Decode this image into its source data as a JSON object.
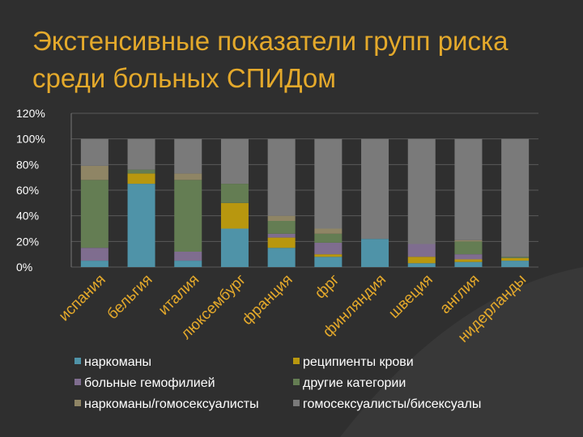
{
  "title": "Экстенсивные показатели групп риска среди больных СПИДом",
  "chart_data": {
    "type": "bar",
    "stacked": true,
    "categories": [
      "испания",
      "бельгия",
      "италия",
      "люксембург",
      "франция",
      "фрг",
      "финляндия",
      "швеция",
      "англия",
      "нидерланды"
    ],
    "y_ticks": [
      "0%",
      "20%",
      "40%",
      "60%",
      "80%",
      "100%",
      "120%"
    ],
    "ylim": [
      0,
      120
    ],
    "legend_position": "bottom",
    "series": [
      {
        "name": "наркоманы",
        "color": "#4f93a8",
        "values": [
          5,
          65,
          5,
          30,
          15,
          8,
          22,
          3,
          4,
          5
        ]
      },
      {
        "name": "реципиенты крови",
        "color": "#b8970f",
        "values": [
          0,
          8,
          0,
          20,
          8,
          2,
          0,
          5,
          2,
          2
        ]
      },
      {
        "name": "больные гемофилией",
        "color": "#7f6d8f",
        "values": [
          10,
          0,
          7,
          0,
          3,
          9,
          0,
          10,
          4,
          0
        ]
      },
      {
        "name": "другие категории",
        "color": "#647d53",
        "values": [
          53,
          3,
          56,
          15,
          10,
          7,
          0,
          0,
          10,
          1
        ]
      },
      {
        "name": "наркоманы/гомосексуалисты",
        "color": "#8f8565",
        "values": [
          11,
          0,
          5,
          0,
          4,
          4,
          0,
          0,
          1,
          0
        ]
      },
      {
        "name": "гомосексуалисты/бисексуалы",
        "color": "#7a7a7a",
        "values": [
          21,
          24,
          27,
          35,
          60,
          70,
          78,
          82,
          79,
          92
        ]
      }
    ]
  }
}
